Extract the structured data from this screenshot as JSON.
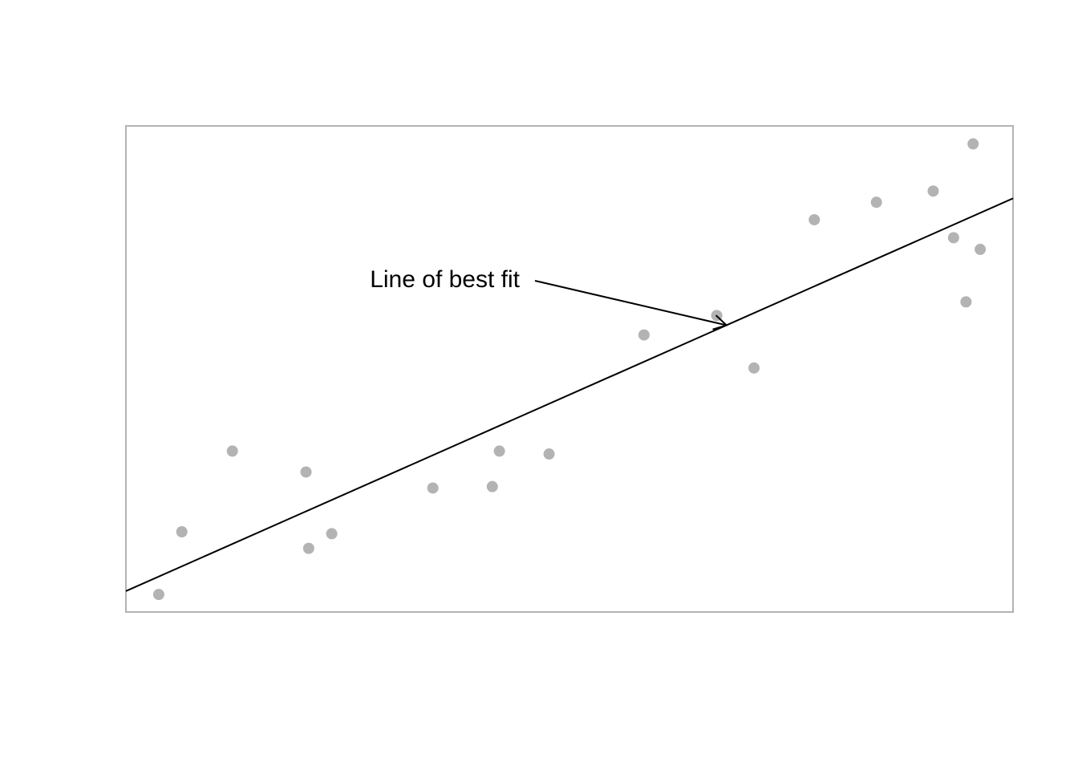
{
  "chart_data": {
    "type": "scatter",
    "title": "",
    "xlabel": "",
    "ylabel": "",
    "axes_visible": false,
    "grid": false,
    "box": true,
    "xlim": [
      0,
      100
    ],
    "ylim": [
      0,
      100
    ],
    "points": [
      {
        "x": 3.7,
        "y": 3.6
      },
      {
        "x": 6.3,
        "y": 16.5
      },
      {
        "x": 12.0,
        "y": 33.1
      },
      {
        "x": 20.3,
        "y": 28.8
      },
      {
        "x": 20.6,
        "y": 13.1
      },
      {
        "x": 23.2,
        "y": 16.1
      },
      {
        "x": 34.6,
        "y": 25.5
      },
      {
        "x": 41.3,
        "y": 25.8
      },
      {
        "x": 42.1,
        "y": 33.1
      },
      {
        "x": 47.7,
        "y": 32.5
      },
      {
        "x": 58.4,
        "y": 57.0
      },
      {
        "x": 66.6,
        "y": 61.0
      },
      {
        "x": 70.8,
        "y": 50.2
      },
      {
        "x": 77.6,
        "y": 80.7
      },
      {
        "x": 84.6,
        "y": 84.3
      },
      {
        "x": 91.0,
        "y": 86.6
      },
      {
        "x": 93.3,
        "y": 77.0
      },
      {
        "x": 94.7,
        "y": 63.8
      },
      {
        "x": 95.5,
        "y": 96.3
      },
      {
        "x": 96.3,
        "y": 74.6
      }
    ],
    "fit_line": {
      "x": [
        0,
        100
      ],
      "y": [
        4.3,
        85.1
      ]
    },
    "annotation": {
      "text": "Line of best fit",
      "target": {
        "x": 67.7,
        "y": 59.0
      }
    }
  }
}
